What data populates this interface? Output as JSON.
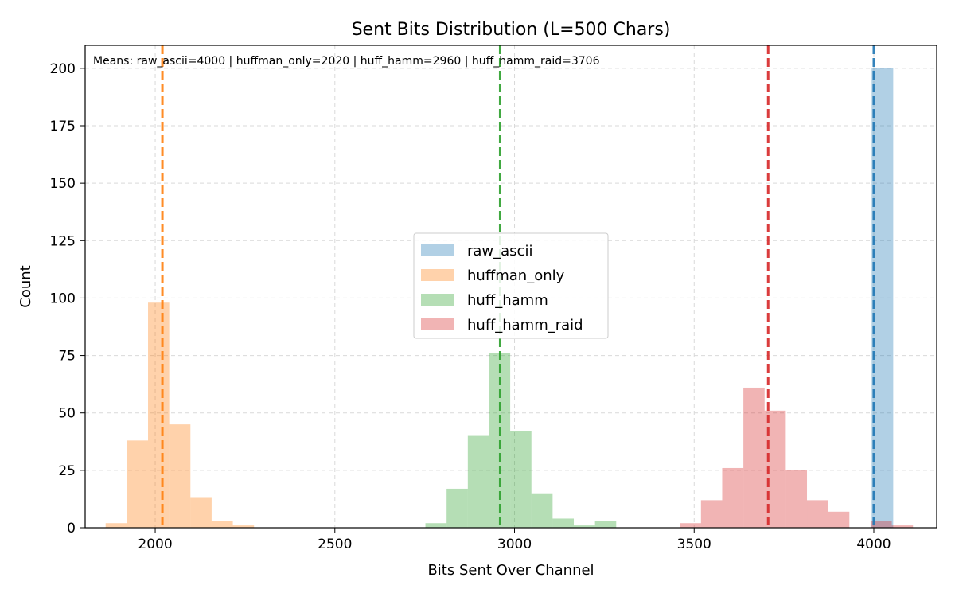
{
  "chart_data": {
    "type": "histogram",
    "title": "Sent Bits Distribution (L=500 Chars)",
    "xlabel": "Bits Sent Over Channel",
    "ylabel": "Count",
    "xlim": [
      1805,
      4175
    ],
    "ylim": [
      0,
      210
    ],
    "xticks": [
      2000,
      2500,
      3000,
      3500,
      4000
    ],
    "yticks": [
      0,
      25,
      50,
      75,
      100,
      125,
      150,
      175,
      200
    ],
    "grid": true,
    "legend_position": "center",
    "annotation": "Means: raw_ascii=4000 | huffman_only=2020 | huff_hamm=2960 | huff_hamm_raid=3706",
    "series": [
      {
        "name": "raw_ascii",
        "color": "#1f77b4",
        "mean": 4000,
        "bins": [
          {
            "x0": 3994,
            "x1": 4054,
            "count": 200
          }
        ]
      },
      {
        "name": "huffman_only",
        "color": "#ff7f0e",
        "mean": 2020,
        "bins": [
          {
            "x0": 1862,
            "x1": 1921,
            "count": 2
          },
          {
            "x0": 1921,
            "x1": 1980,
            "count": 38
          },
          {
            "x0": 1980,
            "x1": 2039,
            "count": 98
          },
          {
            "x0": 2039,
            "x1": 2098,
            "count": 45
          },
          {
            "x0": 2098,
            "x1": 2157,
            "count": 13
          },
          {
            "x0": 2157,
            "x1": 2216,
            "count": 3
          },
          {
            "x0": 2216,
            "x1": 2275,
            "count": 1
          }
        ]
      },
      {
        "name": "huff_hamm",
        "color": "#2ca02c",
        "mean": 2960,
        "bins": [
          {
            "x0": 2752,
            "x1": 2811,
            "count": 2
          },
          {
            "x0": 2811,
            "x1": 2870,
            "count": 17
          },
          {
            "x0": 2870,
            "x1": 2929,
            "count": 40
          },
          {
            "x0": 2929,
            "x1": 2988,
            "count": 76
          },
          {
            "x0": 2988,
            "x1": 3047,
            "count": 42
          },
          {
            "x0": 3047,
            "x1": 3106,
            "count": 15
          },
          {
            "x0": 3106,
            "x1": 3165,
            "count": 4
          },
          {
            "x0": 3165,
            "x1": 3224,
            "count": 1
          },
          {
            "x0": 3224,
            "x1": 3283,
            "count": 3
          }
        ]
      },
      {
        "name": "huff_hamm_raid",
        "color": "#d62728",
        "mean": 3706,
        "bins": [
          {
            "x0": 3460,
            "x1": 3519,
            "count": 2
          },
          {
            "x0": 3519,
            "x1": 3578,
            "count": 12
          },
          {
            "x0": 3578,
            "x1": 3637,
            "count": 26
          },
          {
            "x0": 3637,
            "x1": 3696,
            "count": 61
          },
          {
            "x0": 3696,
            "x1": 3755,
            "count": 51
          },
          {
            "x0": 3755,
            "x1": 3814,
            "count": 25
          },
          {
            "x0": 3814,
            "x1": 3873,
            "count": 12
          },
          {
            "x0": 3873,
            "x1": 3932,
            "count": 7
          },
          {
            "x0": 3932,
            "x1": 3991,
            "count": 0
          },
          {
            "x0": 3991,
            "x1": 4050,
            "count": 3
          },
          {
            "x0": 4050,
            "x1": 4109,
            "count": 1
          }
        ]
      }
    ]
  }
}
